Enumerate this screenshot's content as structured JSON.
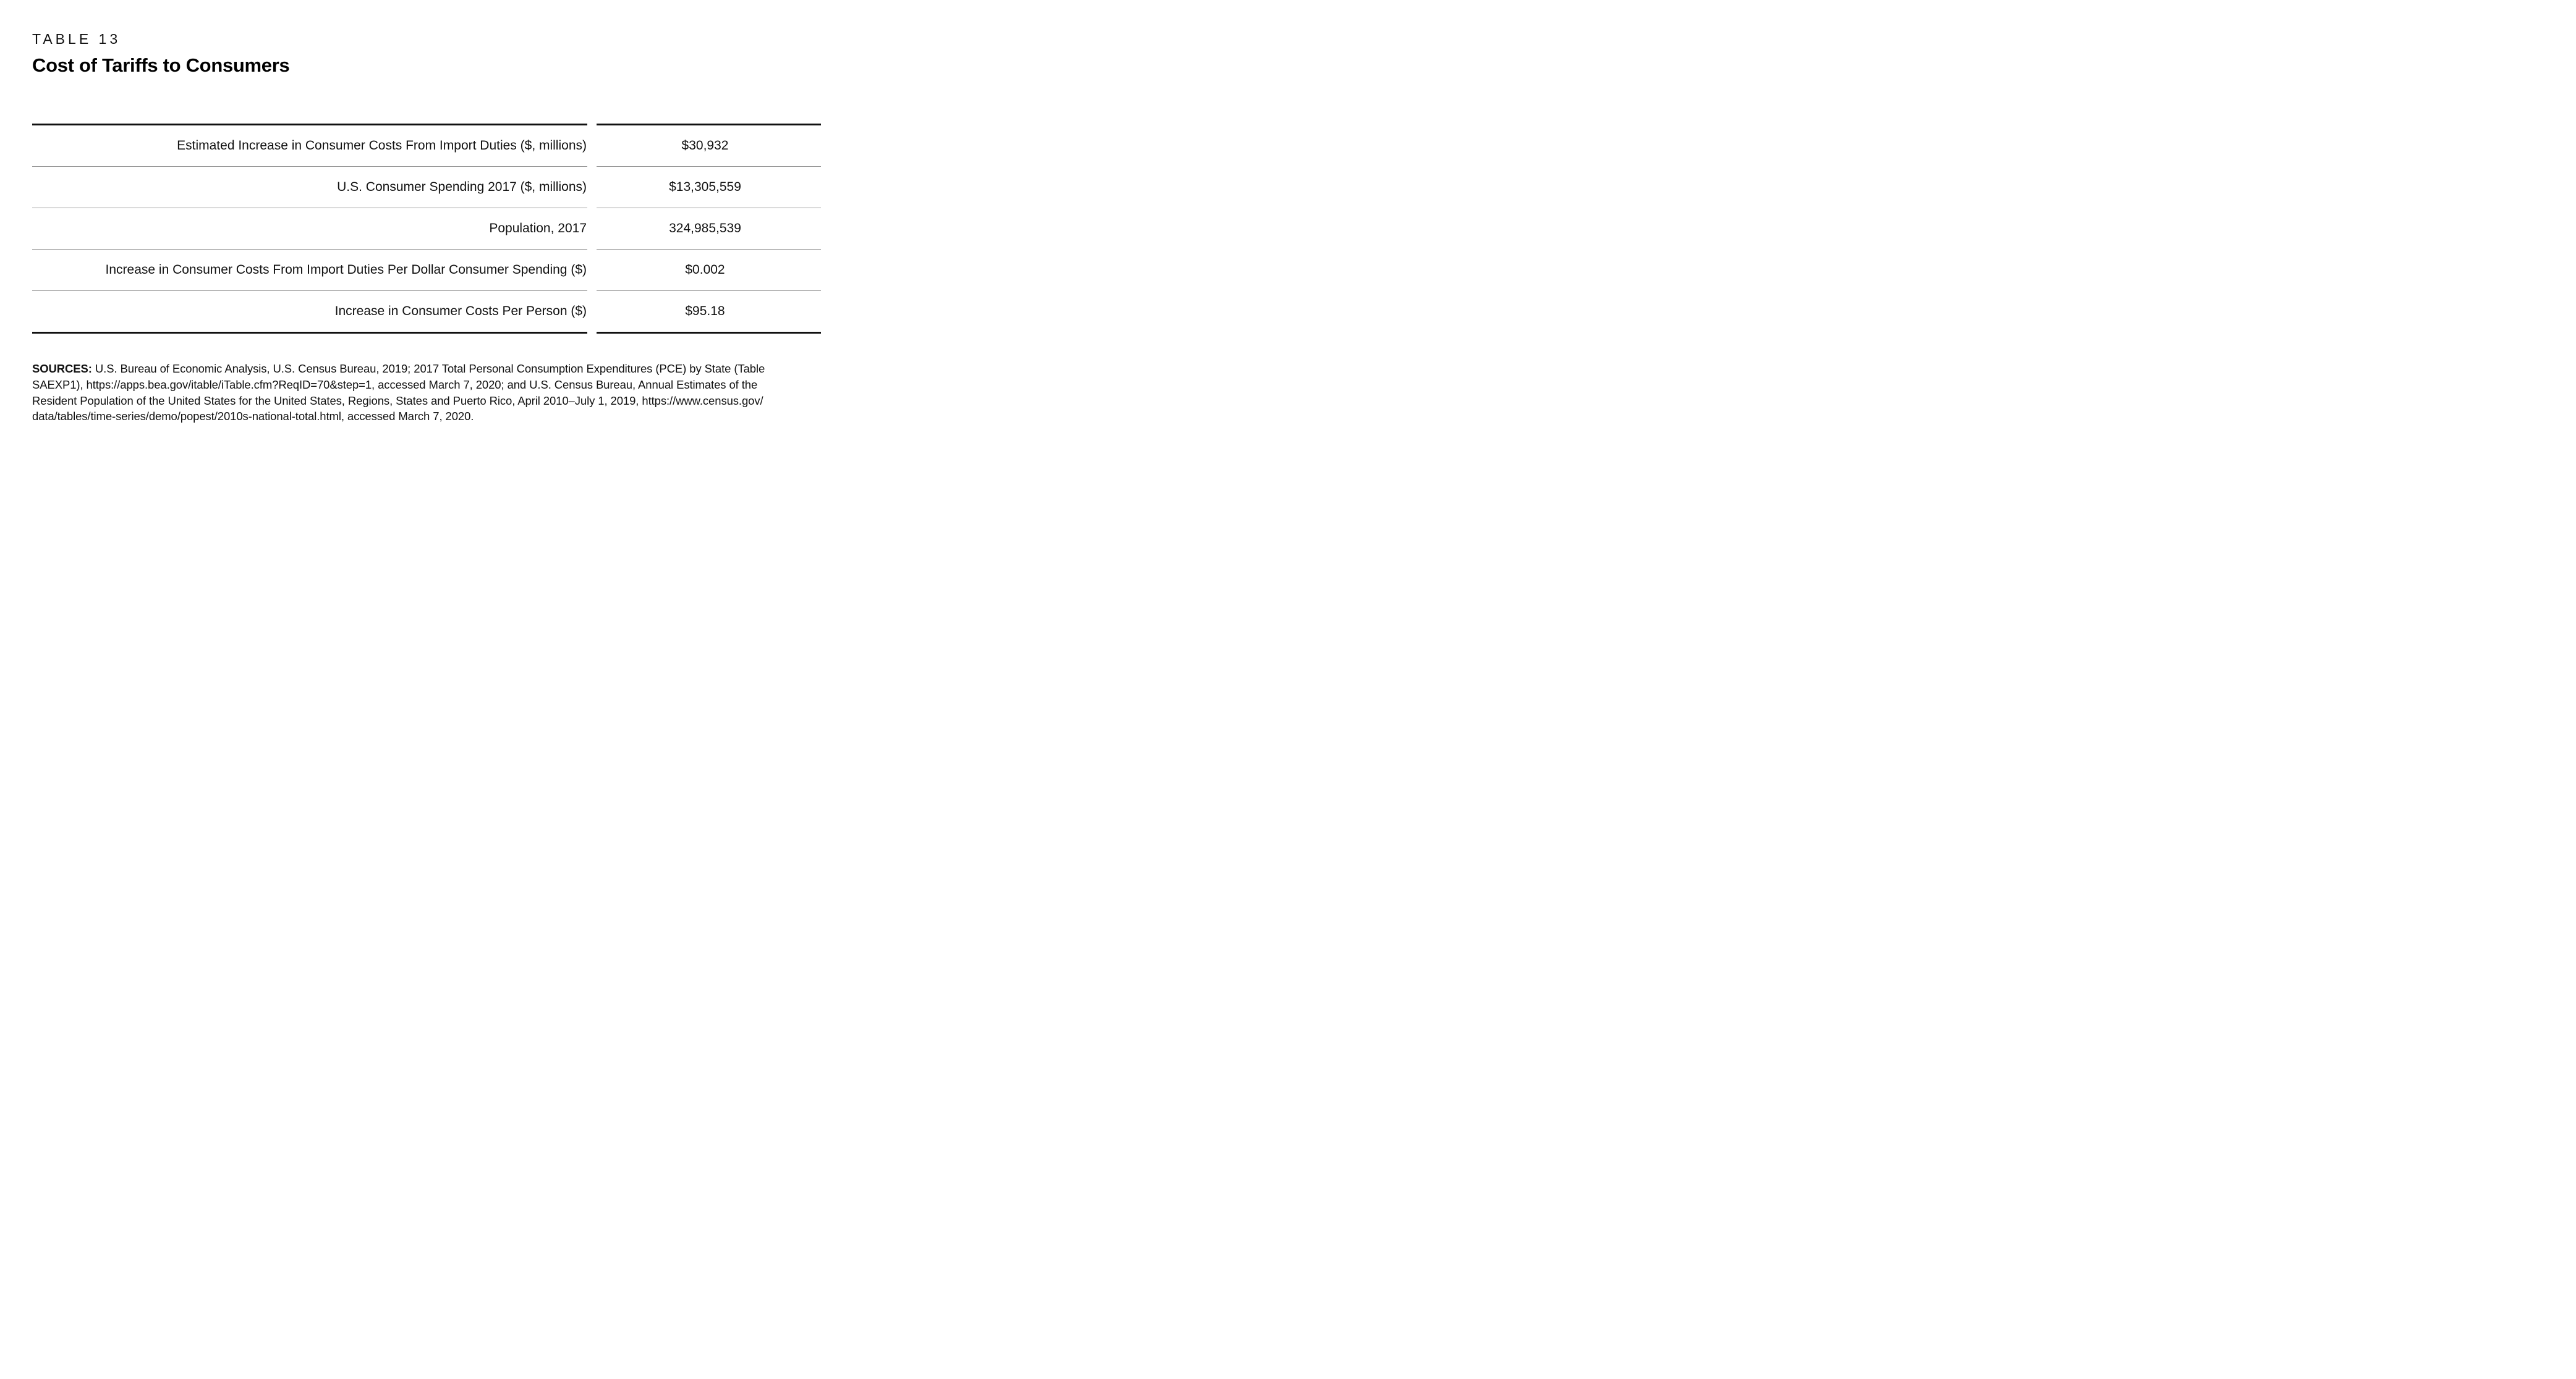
{
  "header": {
    "kicker": "TABLE 13",
    "title": "Cost of Tariffs to Consumers"
  },
  "table": {
    "rows": [
      {
        "label": "Estimated Increase in Consumer Costs From Import Duties ($, millions)",
        "value": "$30,932"
      },
      {
        "label": "U.S. Consumer Spending 2017 ($, millions)",
        "value": "$13,305,559"
      },
      {
        "label": "Population, 2017",
        "value": "324,985,539"
      },
      {
        "label": "Increase in Consumer Costs From Import Duties Per Dollar Consumer Spending ($)",
        "value": "$0.002"
      },
      {
        "label": "Increase in Consumer Costs Per Person ($)",
        "value": "$95.18"
      }
    ]
  },
  "sources": {
    "label": "SOURCES:",
    "line1": " U.S. Bureau of Economic Analysis, U.S. Census Bureau, 2019; 2017 Total Personal Consumption Expenditures (PCE) by State (Table",
    "line2": "SAEXP1), https://apps.bea.gov/itable/iTable.cfm?ReqID=70&step=1, accessed March 7, 2020; and U.S. Census Bureau, Annual Estimates of the",
    "line3": "Resident Population of the United States for the United States, Regions, States and Puerto Rico, April 2010–July 1, 2019, https://www.census.gov/",
    "line4": "data/tables/time-series/demo/popest/2010s-national-total.html, accessed March 7, 2020."
  },
  "colors": {
    "background": "#ffffff",
    "rule": "#111111",
    "separator": "#999999",
    "text": "#111111"
  }
}
